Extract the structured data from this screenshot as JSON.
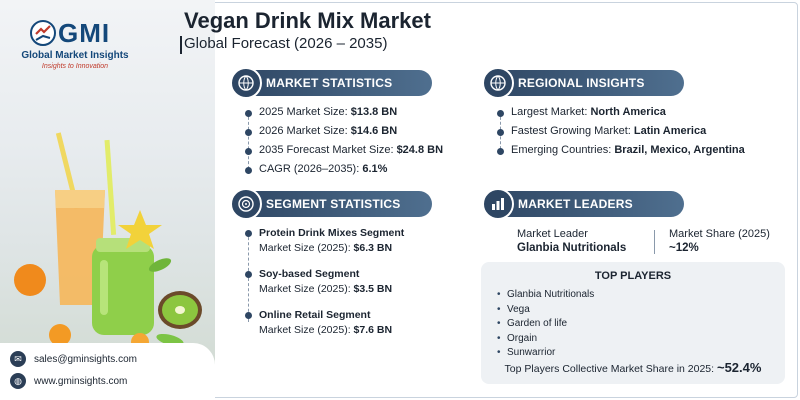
{
  "brand": {
    "short": "GMI",
    "name": "Global Market Insights",
    "tagline": "Insights to Innovation"
  },
  "header": {
    "title": "Vegan Drink Mix Market",
    "subtitle": "Global Forecast (2026 – 2035)"
  },
  "market_statistics": {
    "heading": "MARKET STATISTICS",
    "items": [
      {
        "label": "2025 Market Size: ",
        "value": "$13.8 BN"
      },
      {
        "label": "2026 Market Size: ",
        "value": "$14.6 BN"
      },
      {
        "label": "2035 Forecast Market Size: ",
        "value": "$24.8 BN"
      },
      {
        "label": "CAGR (2026–2035): ",
        "value": "6.1%"
      }
    ]
  },
  "regional_insights": {
    "heading": "REGIONAL INSIGHTS",
    "items": [
      {
        "label": "Largest Market: ",
        "value": "North America"
      },
      {
        "label": "Fastest Growing Market: ",
        "value": "Latin America"
      },
      {
        "label": "Emerging Countries: ",
        "value": "Brazil, Mexico, Argentina"
      }
    ]
  },
  "segment_statistics": {
    "heading": "SEGMENT STATISTICS",
    "items": [
      {
        "name": "Protein Drink Mixes Segment",
        "label": "Market Size (2025): ",
        "value": "$6.3 BN"
      },
      {
        "name": "Soy-based Segment",
        "label": "Market Size (2025): ",
        "value": "$3.5 BN"
      },
      {
        "name": "Online Retail Segment",
        "label": "Market Size (2025): ",
        "value": "$7.6 BN"
      }
    ]
  },
  "market_leaders": {
    "heading": "MARKET LEADERS",
    "leader_label": "Market Leader",
    "leader_name": "Glanbia Nutritionals",
    "share_label": "Market Share (2025)",
    "share_value": "~12%"
  },
  "top_players": {
    "heading": "TOP PLAYERS",
    "items": [
      "Glanbia Nutritionals",
      "Vega",
      "Garden of life",
      "Orgain",
      "Sunwarrior"
    ],
    "collective_label": "Top Players Collective Market Share in 2025: ",
    "collective_value": "~52.4%"
  },
  "contact": {
    "email": "sales@gminsights.com",
    "website": "www.gminsights.com"
  },
  "colors": {
    "navy": "#2e4663",
    "accent_red": "#c03a2b",
    "brand_blue": "#14487a"
  }
}
